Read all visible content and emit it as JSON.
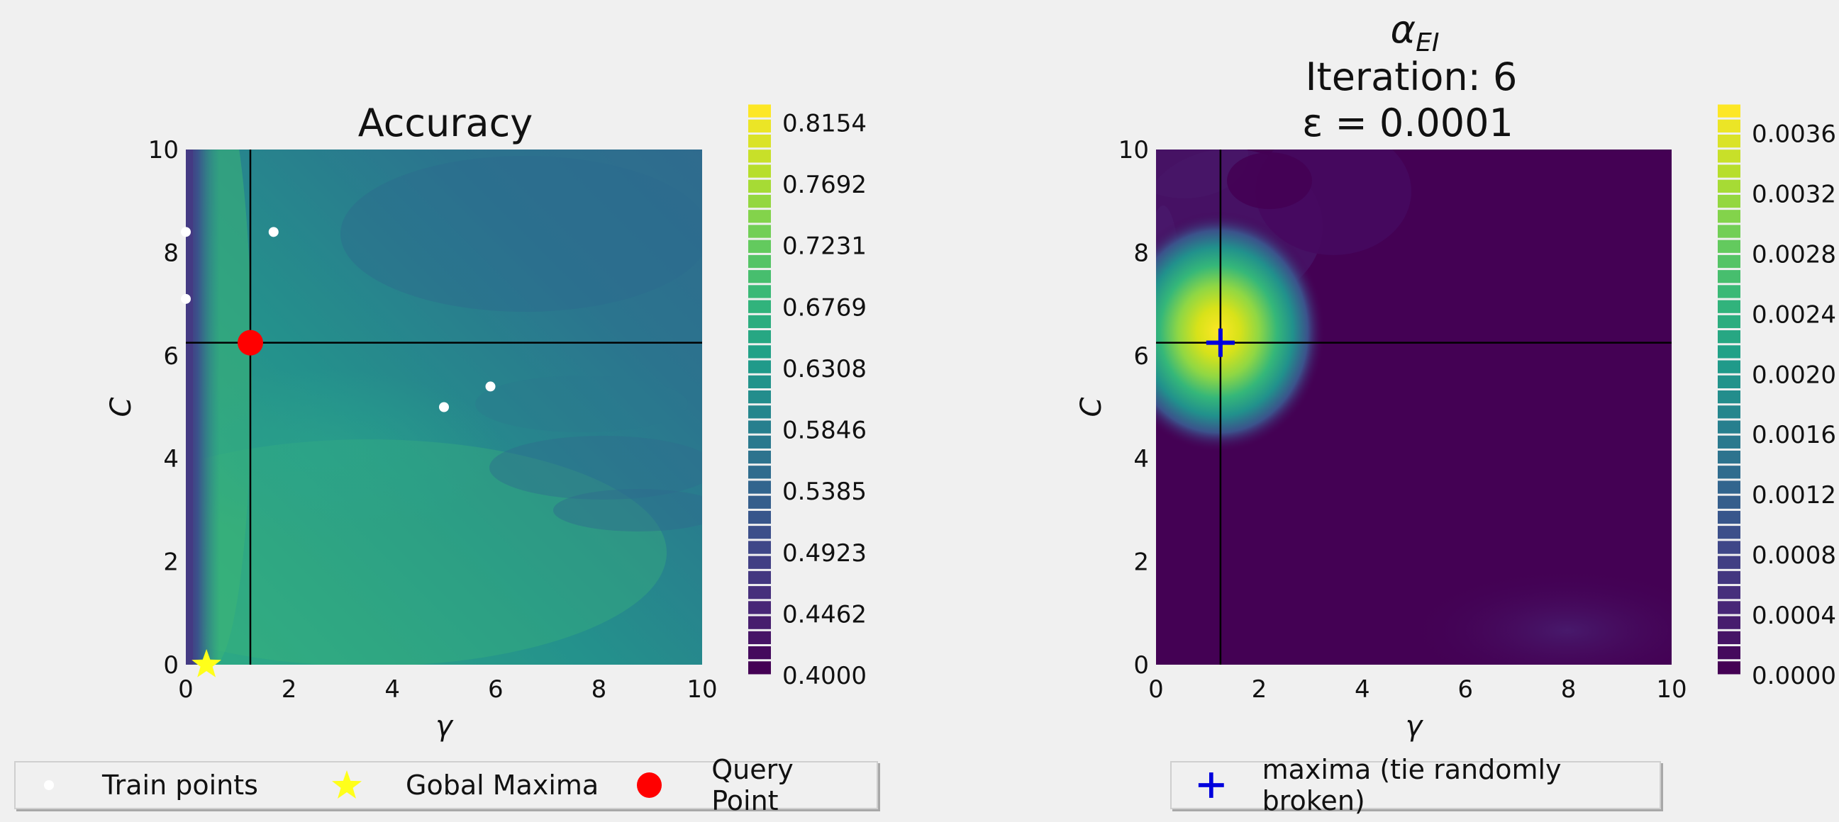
{
  "chart_data": [
    {
      "type": "heatmap",
      "title": "Accuracy",
      "xlabel": "γ",
      "ylabel": "C",
      "xlim": [
        0,
        10
      ],
      "ylim": [
        0,
        10
      ],
      "xticks": [
        "0",
        "2",
        "4",
        "6",
        "8",
        "10"
      ],
      "yticks": [
        "0",
        "2",
        "4",
        "6",
        "8",
        "10"
      ],
      "colorbar": {
        "min": 0.4,
        "max": 0.83,
        "labels": [
          "0.4000",
          "0.4462",
          "0.4923",
          "0.5385",
          "0.5846",
          "0.6308",
          "0.6769",
          "0.7231",
          "0.7692",
          "0.8154"
        ]
      },
      "train_points": [
        {
          "x": 0.0,
          "y": 8.4
        },
        {
          "x": 0.0,
          "y": 7.1
        },
        {
          "x": 1.7,
          "y": 8.4
        },
        {
          "x": 5.0,
          "y": 5.0
        },
        {
          "x": 5.9,
          "y": 5.4
        }
      ],
      "global_maxima": {
        "x": 0.4,
        "y": 0.0
      },
      "query_point": {
        "x": 1.25,
        "y": 6.25
      },
      "crosshair": {
        "x": 1.25,
        "y": 6.25
      },
      "legend": [
        "Train points",
        "Gobal Maxima",
        "Query Point"
      ]
    },
    {
      "type": "heatmap",
      "title_symbol": "α",
      "title_subscript": "EI",
      "title_line2": "Iteration: 6",
      "title_line3": "ε = 0.0001",
      "xlabel": "γ",
      "ylabel": "C",
      "xlim": [
        0,
        10
      ],
      "ylim": [
        0,
        10
      ],
      "xticks": [
        "0",
        "2",
        "4",
        "6",
        "8",
        "10"
      ],
      "yticks": [
        "0",
        "2",
        "4",
        "6",
        "8",
        "10"
      ],
      "colorbar": {
        "min": 0.0,
        "max": 0.0038,
        "labels": [
          "0.0000",
          "0.0004",
          "0.0008",
          "0.0012",
          "0.0016",
          "0.0020",
          "0.0024",
          "0.0028",
          "0.0032",
          "0.0036"
        ]
      },
      "maxima": {
        "x": 1.25,
        "y": 6.25
      },
      "crosshair": {
        "x": 1.25,
        "y": 6.25
      },
      "legend": [
        "maxima (tie randomly broken)"
      ]
    }
  ],
  "colors": {
    "viridis": [
      "#440154",
      "#482878",
      "#3e4989",
      "#31688e",
      "#26828e",
      "#1f9e89",
      "#35b779",
      "#6ece58",
      "#b5de2b",
      "#fde725"
    ],
    "train_point": "#ffffff",
    "global_maxima": "#ffff1a",
    "query_point": "#ff0000",
    "maxima_marker": "#0000dd"
  }
}
